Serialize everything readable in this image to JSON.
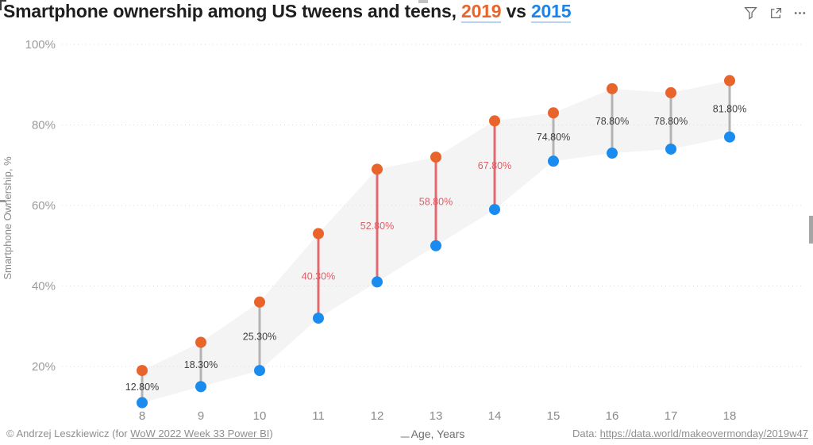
{
  "header": {
    "title_prefix": "Smartphone ownership among US tweens and teens, ",
    "year_2019_label": "2019",
    "vs_label": " vs ",
    "year_2015_label": "2015",
    "icons": [
      {
        "name": "filter-icon"
      },
      {
        "name": "focus-mode-icon"
      },
      {
        "name": "more-options-icon"
      }
    ]
  },
  "chart_data": {
    "type": "dumbbell",
    "title": "Smartphone ownership among US tweens and teens, 2019 vs 2015",
    "categories": [
      8,
      9,
      10,
      11,
      12,
      13,
      14,
      15,
      16,
      17,
      18
    ],
    "series": [
      {
        "name": "2015",
        "color": "#1B8CEF",
        "values": [
          11,
          15,
          19,
          32,
          41,
          50,
          59,
          71,
          73,
          74,
          77
        ]
      },
      {
        "name": "2019",
        "color": "#E8642B",
        "values": [
          19,
          26,
          36,
          53,
          69,
          72,
          81,
          83,
          89,
          88,
          91
        ]
      }
    ],
    "diff_labels": {
      "values": [
        "12.80%",
        "18.30%",
        "25.30%",
        "40.30%",
        "52.80%",
        "58.80%",
        "67.80%",
        "74.80%",
        "78.80%",
        "78.80%",
        "81.80%"
      ],
      "highlighted": [
        false,
        false,
        false,
        true,
        true,
        true,
        true,
        false,
        false,
        false,
        false
      ]
    },
    "xlabel": "Age, Years",
    "ylabel": "Smartphone Ownership, %",
    "y_axis": {
      "tick_values": [
        100,
        80,
        60,
        40,
        20
      ],
      "tick_labels": [
        "100%",
        "80%",
        "60%",
        "40%",
        "20%"
      ]
    },
    "ylim": [
      8,
      103
    ],
    "grid": "dotted horizontal gridlines",
    "legend": "none (series years colored in title)",
    "colors": {
      "line_normal": "#B3B3B3",
      "line_highlight": "#E2696F",
      "label_normal": "#3F3F3F",
      "label_highlight": "#DD6068",
      "band": "#F4F4F4",
      "gridline": "#DBDBDB",
      "axis_text": "#9B9B9B"
    }
  },
  "footer": {
    "copyright_prefix": "© Andrzej Leszkiewicz (for ",
    "copyright_link": "WoW 2022 Week 33 Power BI",
    "copyright_suffix": ")",
    "data_prefix": "Data: ",
    "data_link": "https://data.world/makeovermonday/2019w47"
  }
}
